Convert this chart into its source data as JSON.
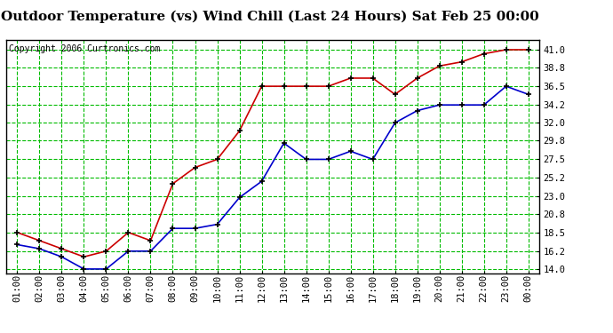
{
  "title": "Outdoor Temperature (vs) Wind Chill (Last 24 Hours) Sat Feb 25 00:00",
  "copyright": "Copyright 2006 Curtronics.com",
  "x_labels": [
    "01:00",
    "02:00",
    "03:00",
    "04:00",
    "05:00",
    "06:00",
    "07:00",
    "08:00",
    "09:00",
    "10:00",
    "11:00",
    "12:00",
    "13:00",
    "14:00",
    "15:00",
    "16:00",
    "17:00",
    "18:00",
    "19:00",
    "20:00",
    "21:00",
    "22:00",
    "23:00",
    "00:00"
  ],
  "red_data": [
    18.5,
    17.5,
    16.5,
    15.5,
    16.2,
    18.5,
    17.5,
    24.5,
    26.5,
    27.5,
    31.0,
    36.5,
    36.5,
    36.5,
    36.5,
    37.5,
    37.5,
    35.5,
    37.5,
    39.0,
    39.5,
    40.5,
    41.0,
    41.0
  ],
  "blue_data": [
    17.0,
    16.5,
    15.5,
    14.0,
    14.0,
    16.2,
    16.2,
    19.0,
    19.0,
    19.5,
    22.8,
    24.8,
    29.5,
    27.5,
    27.5,
    28.5,
    27.5,
    32.0,
    33.5,
    34.2,
    34.2,
    34.2,
    36.5,
    35.5
  ],
  "ylim": [
    13.5,
    42.2
  ],
  "yticks": [
    14.0,
    16.2,
    18.5,
    20.8,
    23.0,
    25.2,
    27.5,
    29.8,
    32.0,
    34.2,
    36.5,
    38.8,
    41.0
  ],
  "red_color": "#cc0000",
  "blue_color": "#0000cc",
  "bg_color": "#ffffff",
  "plot_bg_color": "#ffffff",
  "grid_color": "#00bb00",
  "title_fontsize": 11,
  "tick_fontsize": 7.5,
  "copyright_fontsize": 7
}
